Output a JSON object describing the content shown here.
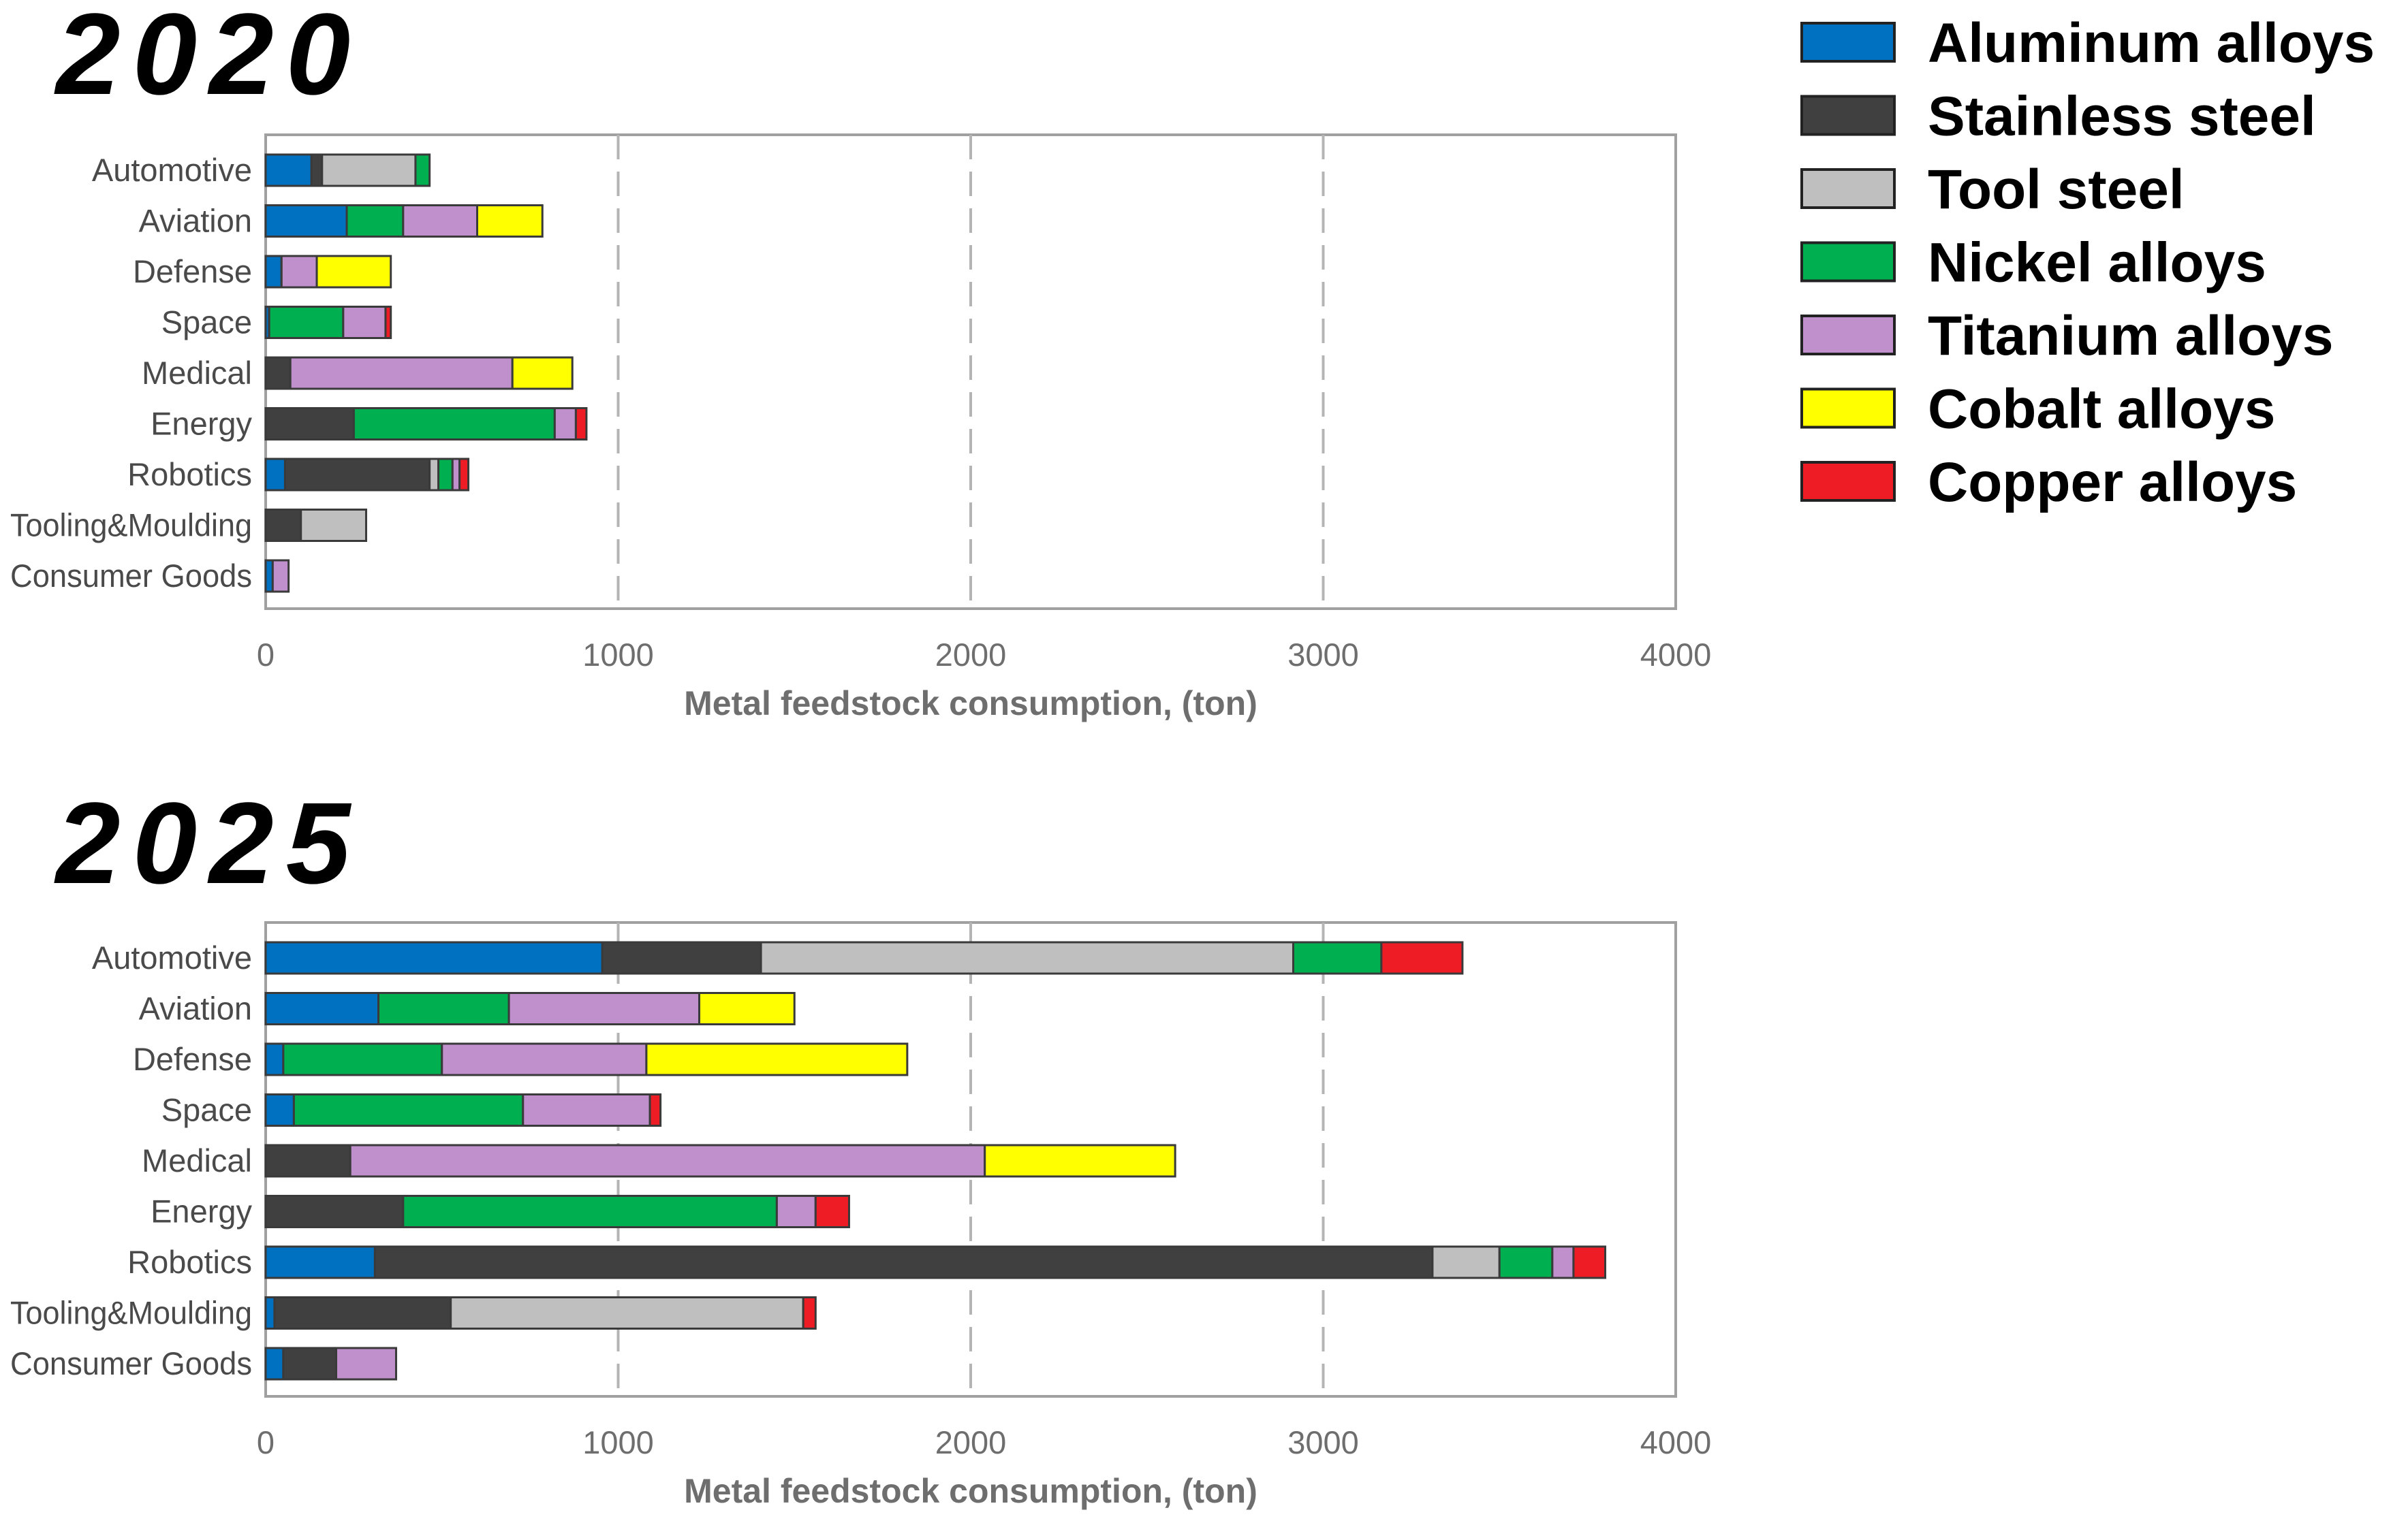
{
  "chart_data": {
    "type": "bar",
    "orientation": "horizontal",
    "stacked": true,
    "xlabel": "Metal feedstock consumption, (ton)",
    "xlim": [
      0,
      4000
    ],
    "xticks": [
      "0",
      "1000",
      "2000",
      "3000",
      "4000"
    ],
    "grid": true,
    "legend_position": "top-right",
    "categories": [
      "Automotive",
      "Aviation",
      "Defense",
      "Space",
      "Medical",
      "Energy",
      "Robotics",
      "Tooling&Moulding",
      "Consumer Goods"
    ],
    "series_names": [
      "Aluminum alloys",
      "Stainless steel",
      "Tool steel",
      "Nickel alloys",
      "Titanium alloys",
      "Cobalt alloys",
      "Copper alloys"
    ],
    "series_colors": [
      "#0070c0",
      "#404040",
      "#bfbfbf",
      "#00b050",
      "#c090cc",
      "#ffff00",
      "#ee1c25"
    ],
    "panels": [
      {
        "title": "2020",
        "series": [
          {
            "name": "Aluminum alloys",
            "values": [
              130,
              230,
              45,
              10,
              0,
              0,
              55,
              0,
              20
            ]
          },
          {
            "name": "Stainless steel",
            "values": [
              30,
              0,
              0,
              0,
              70,
              250,
              410,
              100,
              0
            ]
          },
          {
            "name": "Tool steel",
            "values": [
              265,
              0,
              0,
              0,
              0,
              0,
              25,
              185,
              0
            ]
          },
          {
            "name": "Nickel alloys",
            "values": [
              40,
              160,
              0,
              210,
              0,
              570,
              40,
              0,
              0
            ]
          },
          {
            "name": "Titanium alloys",
            "values": [
              0,
              210,
              100,
              120,
              630,
              60,
              20,
              0,
              45
            ]
          },
          {
            "name": "Cobalt alloys",
            "values": [
              0,
              185,
              210,
              0,
              170,
              0,
              0,
              0,
              0
            ]
          },
          {
            "name": "Copper alloys",
            "values": [
              0,
              0,
              0,
              15,
              0,
              30,
              25,
              0,
              0
            ]
          }
        ]
      },
      {
        "title": "2025",
        "series": [
          {
            "name": "Aluminum alloys",
            "values": [
              955,
              320,
              50,
              80,
              0,
              0,
              310,
              25,
              50
            ]
          },
          {
            "name": "Stainless steel",
            "values": [
              450,
              0,
              0,
              0,
              240,
              390,
              3000,
              500,
              150
            ]
          },
          {
            "name": "Tool steel",
            "values": [
              1510,
              0,
              0,
              0,
              0,
              0,
              190,
              1000,
              0
            ]
          },
          {
            "name": "Nickel alloys",
            "values": [
              250,
              370,
              450,
              650,
              0,
              1060,
              150,
              0,
              0
            ]
          },
          {
            "name": "Titanium alloys",
            "values": [
              0,
              540,
              580,
              360,
              1800,
              110,
              60,
              0,
              170
            ]
          },
          {
            "name": "Cobalt alloys",
            "values": [
              0,
              270,
              740,
              0,
              540,
              0,
              0,
              0,
              0
            ]
          },
          {
            "name": "Copper alloys",
            "values": [
              230,
              0,
              0,
              30,
              0,
              95,
              90,
              35,
              0
            ]
          }
        ]
      }
    ]
  }
}
